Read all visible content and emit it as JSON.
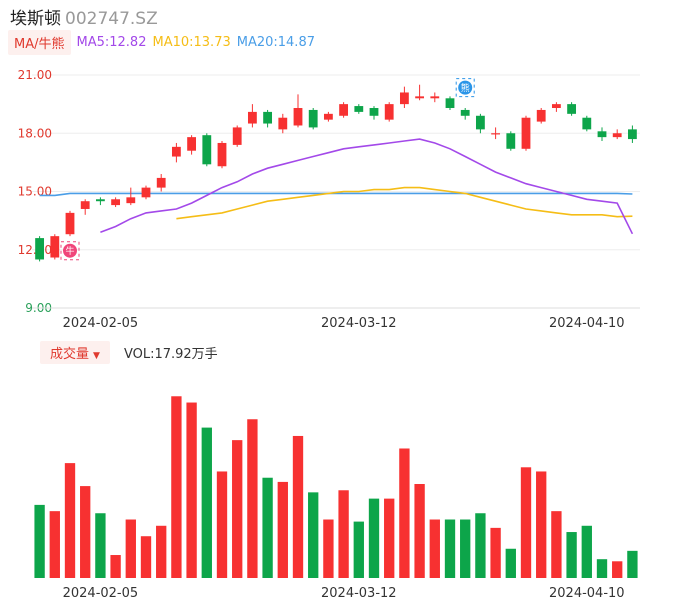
{
  "header": {
    "name": "埃斯顿",
    "code": "002747.SZ"
  },
  "ma_legend": {
    "badge_label": "MA/牛熊",
    "ma5_label": "MA5:12.82",
    "ma10_label": "MA10:13.73",
    "ma20_label": "MA20:14.87",
    "ma5_color": "#a349e9",
    "ma10_color": "#f5bd16",
    "ma20_color": "#4a9ee7"
  },
  "volume_header": {
    "badge_label": "成交量",
    "vol_label": "VOL:17.92万手"
  },
  "colors": {
    "up": "#f73131",
    "down": "#0da54a",
    "grid": "#eeeeee",
    "axis_text_price": "#e0392e",
    "axis_text_low": "#2aa05a"
  },
  "markers": {
    "bull_icon": "牛",
    "bear_icon": "熊"
  },
  "chart_data": [
    {
      "type": "candlestick",
      "y_ticks": [
        "21.00",
        "18.00",
        "15.00",
        "12.00",
        "9.00"
      ],
      "ylim": [
        9,
        21
      ],
      "x_tick_labels": [
        "2024-02-05",
        "2024-03-12",
        "2024-04-10"
      ],
      "candles": [
        {
          "o": 12.6,
          "c": 11.5,
          "h": 12.7,
          "l": 11.4
        },
        {
          "o": 11.6,
          "c": 12.7,
          "h": 12.8,
          "l": 11.5
        },
        {
          "o": 12.8,
          "c": 13.9,
          "h": 14.0,
          "l": 12.7
        },
        {
          "o": 14.1,
          "c": 14.5,
          "h": 14.6,
          "l": 13.8
        },
        {
          "o": 14.6,
          "c": 14.5,
          "h": 14.7,
          "l": 14.3
        },
        {
          "o": 14.3,
          "c": 14.6,
          "h": 14.7,
          "l": 14.2
        },
        {
          "o": 14.4,
          "c": 14.7,
          "h": 15.2,
          "l": 14.3
        },
        {
          "o": 14.7,
          "c": 15.2,
          "h": 15.3,
          "l": 14.6
        },
        {
          "o": 15.2,
          "c": 15.7,
          "h": 15.9,
          "l": 15.0
        },
        {
          "o": 16.8,
          "c": 17.3,
          "h": 17.5,
          "l": 16.5
        },
        {
          "o": 17.1,
          "c": 17.8,
          "h": 17.9,
          "l": 16.9
        },
        {
          "o": 17.9,
          "c": 16.4,
          "h": 18.0,
          "l": 16.3
        },
        {
          "o": 16.3,
          "c": 17.5,
          "h": 17.6,
          "l": 16.2
        },
        {
          "o": 17.4,
          "c": 18.3,
          "h": 18.4,
          "l": 17.3
        },
        {
          "o": 18.5,
          "c": 19.1,
          "h": 19.5,
          "l": 18.3
        },
        {
          "o": 19.1,
          "c": 18.5,
          "h": 19.2,
          "l": 18.3
        },
        {
          "o": 18.2,
          "c": 18.8,
          "h": 19.0,
          "l": 18.0
        },
        {
          "o": 18.4,
          "c": 19.3,
          "h": 20.0,
          "l": 18.3
        },
        {
          "o": 19.2,
          "c": 18.3,
          "h": 19.3,
          "l": 18.2
        },
        {
          "o": 18.7,
          "c": 19.0,
          "h": 19.1,
          "l": 18.6
        },
        {
          "o": 18.9,
          "c": 19.5,
          "h": 19.6,
          "l": 18.8
        },
        {
          "o": 19.4,
          "c": 19.1,
          "h": 19.5,
          "l": 19.0
        },
        {
          "o": 19.3,
          "c": 18.9,
          "h": 19.4,
          "l": 18.7
        },
        {
          "o": 18.7,
          "c": 19.5,
          "h": 19.6,
          "l": 18.6
        },
        {
          "o": 19.5,
          "c": 20.1,
          "h": 20.4,
          "l": 19.3
        },
        {
          "o": 19.8,
          "c": 19.9,
          "h": 20.5,
          "l": 19.7
        },
        {
          "o": 19.8,
          "c": 19.9,
          "h": 20.1,
          "l": 19.6
        },
        {
          "o": 19.8,
          "c": 19.3,
          "h": 19.9,
          "l": 19.2
        },
        {
          "o": 19.2,
          "c": 18.9,
          "h": 19.3,
          "l": 18.7
        },
        {
          "o": 18.9,
          "c": 18.2,
          "h": 19.0,
          "l": 18.0
        },
        {
          "o": 18.0,
          "c": 18.0,
          "h": 18.3,
          "l": 17.7
        },
        {
          "o": 18.0,
          "c": 17.2,
          "h": 18.1,
          "l": 17.1
        },
        {
          "o": 17.2,
          "c": 18.8,
          "h": 18.9,
          "l": 17.1
        },
        {
          "o": 18.6,
          "c": 19.2,
          "h": 19.3,
          "l": 18.5
        },
        {
          "o": 19.3,
          "c": 19.5,
          "h": 19.6,
          "l": 19.1
        },
        {
          "o": 19.5,
          "c": 19.0,
          "h": 19.6,
          "l": 18.9
        },
        {
          "o": 18.8,
          "c": 18.2,
          "h": 18.9,
          "l": 18.1
        },
        {
          "o": 18.1,
          "c": 17.8,
          "h": 18.3,
          "l": 17.6
        },
        {
          "o": 17.8,
          "c": 18.0,
          "h": 18.2,
          "l": 17.7
        },
        {
          "o": 18.2,
          "c": 17.7,
          "h": 18.4,
          "l": 17.5
        }
      ],
      "ma5": [
        null,
        null,
        null,
        null,
        12.9,
        13.2,
        13.6,
        13.9,
        14.0,
        14.1,
        14.4,
        14.8,
        15.2,
        15.5,
        15.9,
        16.2,
        16.4,
        16.6,
        16.8,
        17.0,
        17.2,
        17.3,
        17.4,
        17.5,
        17.6,
        17.7,
        17.5,
        17.2,
        16.8,
        16.4,
        16.0,
        15.7,
        15.4,
        15.2,
        15.0,
        14.8,
        14.6,
        14.5,
        14.4,
        12.82
      ],
      "ma10": [
        null,
        null,
        null,
        null,
        null,
        null,
        null,
        null,
        null,
        13.6,
        13.7,
        13.8,
        13.9,
        14.1,
        14.3,
        14.5,
        14.6,
        14.7,
        14.8,
        14.9,
        15.0,
        15.0,
        15.1,
        15.1,
        15.2,
        15.2,
        15.1,
        15.0,
        14.9,
        14.7,
        14.5,
        14.3,
        14.1,
        14.0,
        13.9,
        13.8,
        13.8,
        13.8,
        13.7,
        13.73
      ],
      "ma20": [
        14.8,
        14.8,
        14.9,
        14.9,
        14.9,
        14.9,
        14.9,
        14.9,
        14.9,
        14.9,
        14.9,
        14.9,
        14.9,
        14.9,
        14.9,
        14.9,
        14.9,
        14.9,
        14.9,
        14.9,
        14.9,
        14.9,
        14.9,
        14.9,
        14.9,
        14.9,
        14.9,
        14.9,
        14.9,
        14.9,
        14.9,
        14.9,
        14.9,
        14.9,
        14.9,
        14.9,
        14.9,
        14.9,
        14.9,
        14.87
      ]
    },
    {
      "type": "bar",
      "x_tick_labels": [
        "2024-02-05",
        "2024-03-12",
        "2024-04-10"
      ],
      "volumes": [
        35,
        32,
        55,
        44,
        31,
        11,
        28,
        20,
        25,
        87,
        84,
        72,
        51,
        66,
        76,
        48,
        46,
        68,
        41,
        28,
        42,
        27,
        38,
        38,
        62,
        45,
        28,
        28,
        28,
        31,
        24,
        14,
        53,
        51,
        32,
        22,
        25,
        9,
        8,
        13
      ]
    }
  ]
}
